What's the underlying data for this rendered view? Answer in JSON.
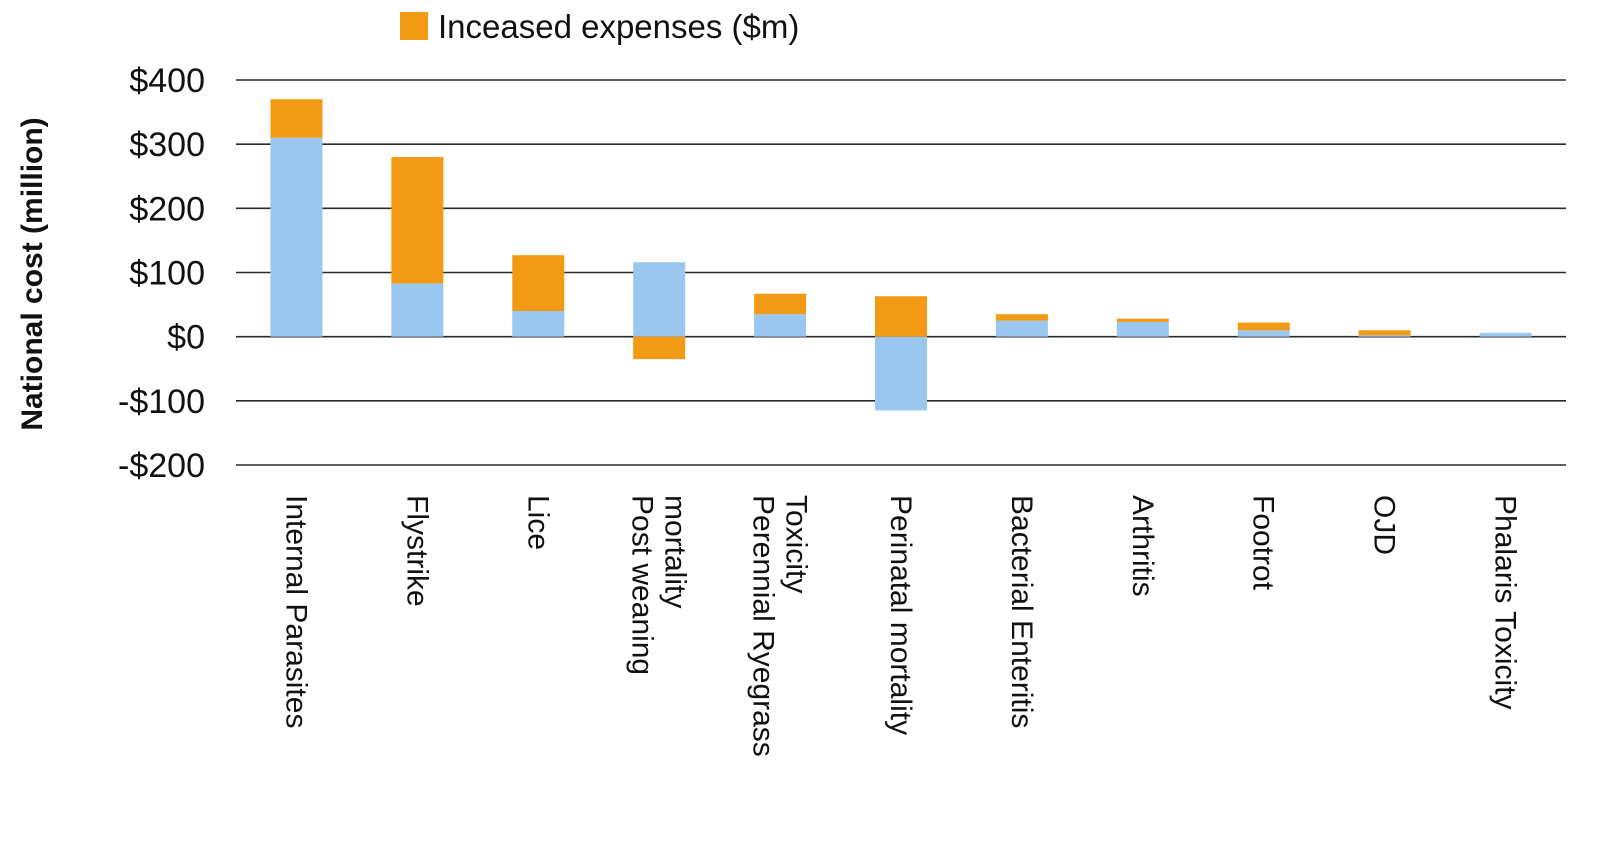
{
  "chart_data": {
    "type": "bar",
    "stacked": true,
    "ylabel": "National cost (million)",
    "ylim": [
      -200,
      400
    ],
    "yticks": [
      400,
      300,
      200,
      100,
      0,
      -100,
      -200
    ],
    "ytick_labels": [
      "$400",
      "$300",
      "$200",
      "$100",
      "$0",
      "-$100",
      "-$200"
    ],
    "grid": true,
    "legend_position": "top",
    "categories": [
      [
        "Internal Parasites"
      ],
      [
        "Flystrike"
      ],
      [
        "Lice"
      ],
      [
        "Post weaning",
        "mortality"
      ],
      [
        "Perennial Ryegrass",
        "Toxicity"
      ],
      [
        "Perinatal mortality"
      ],
      [
        "Bacterial Enteritis"
      ],
      [
        "Arthritis"
      ],
      [
        "Footrot"
      ],
      [
        "OJD"
      ],
      [
        "Phalaris Toxicity"
      ]
    ],
    "series": [
      {
        "color": "#99c7f0",
        "values": [
          310,
          83,
          40,
          116,
          35,
          -115,
          25,
          23,
          10,
          2,
          6
        ]
      },
      {
        "name": "Inceased expenses ($m)",
        "color": "#f39a14",
        "values": [
          60,
          197,
          87,
          -35,
          32,
          63,
          10,
          5,
          12,
          8,
          0
        ]
      }
    ]
  }
}
